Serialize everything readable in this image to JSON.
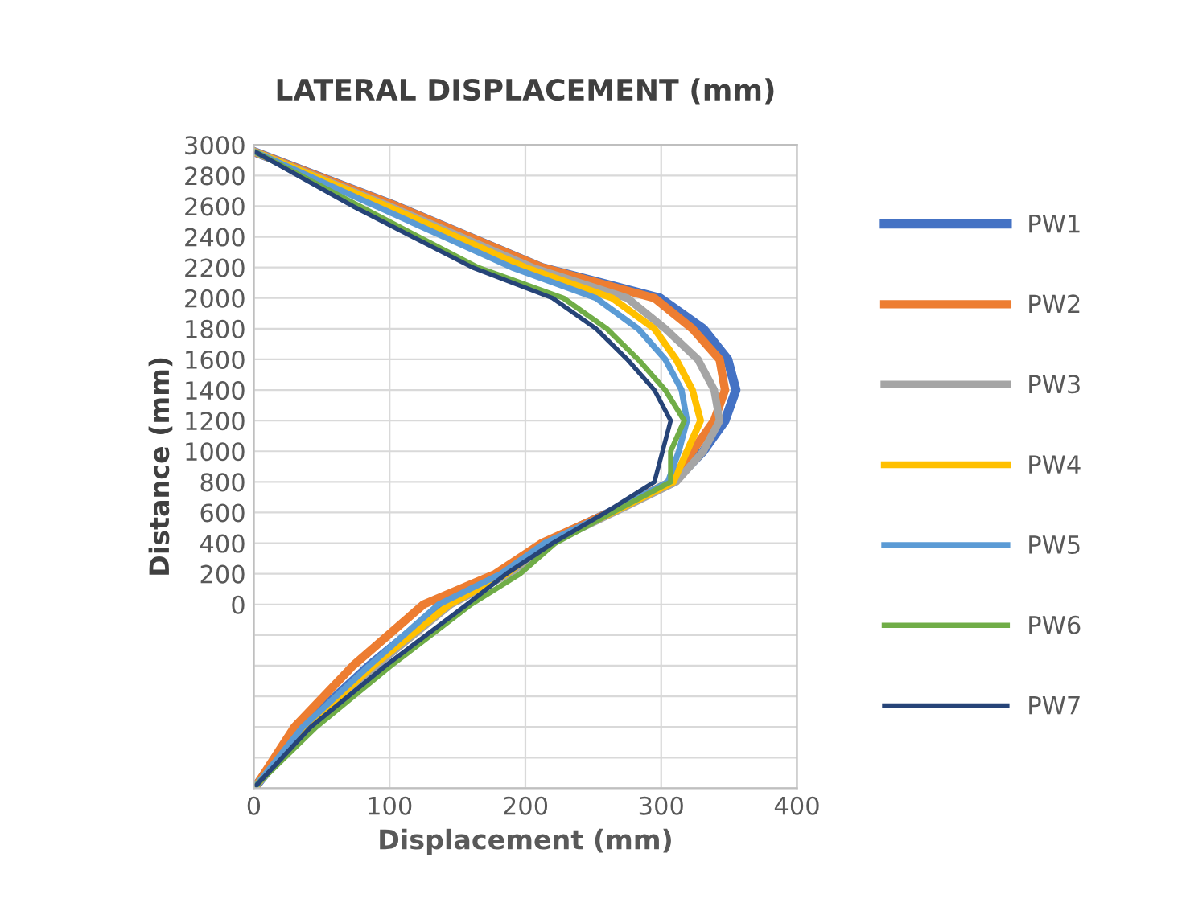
{
  "chart_data": {
    "type": "line",
    "title": "LATERAL DISPLACEMENT (mm)",
    "xlabel": "Displacement (mm)",
    "ylabel": "Distance (mm)",
    "xlim": [
      0,
      400
    ],
    "xticks": [
      0,
      100,
      200,
      300,
      400
    ],
    "ylim": [
      -1200,
      3000
    ],
    "yticks": [
      {
        "value": -1200,
        "label": null
      },
      {
        "value": -1000,
        "label": null
      },
      {
        "value": -800,
        "label": null
      },
      {
        "value": -600,
        "label": null
      },
      {
        "value": -400,
        "label": null
      },
      {
        "value": -200,
        "label": null
      },
      0,
      200,
      400,
      600,
      800,
      1000,
      1200,
      1400,
      1600,
      1800,
      2000,
      2200,
      2400,
      2600,
      2800,
      3000
    ],
    "grid": true,
    "legend": "right",
    "marker": "none",
    "line_style": "solid",
    "series": [
      {
        "name": "PW1",
        "color": "#4472c4",
        "x": [
          2,
          105,
          212,
          299,
          331,
          349,
          355,
          347,
          331,
          309,
          262,
          214,
          185,
          140,
          85,
          36,
          2
        ],
        "values": [
          2950,
          2600,
          2200,
          2000,
          1800,
          1600,
          1400,
          1200,
          1000,
          800,
          600,
          400,
          200,
          0,
          -400,
          -800,
          -1180
        ]
      },
      {
        "name": "PW2",
        "color": "#ed7d31",
        "x": [
          2,
          105,
          212,
          295,
          323,
          343,
          347,
          339,
          323,
          307,
          262,
          212,
          178,
          125,
          73,
          30,
          2
        ],
        "values": [
          2950,
          2600,
          2200,
          2000,
          1800,
          1600,
          1400,
          1200,
          1000,
          800,
          600,
          400,
          200,
          0,
          -400,
          -800,
          -1180
        ]
      },
      {
        "name": "PW3",
        "color": "#a5a5a5",
        "x": [
          2,
          100,
          205,
          275,
          303,
          327,
          339,
          343,
          331,
          311,
          265,
          218,
          188,
          145,
          90,
          40,
          2
        ],
        "values": [
          2950,
          2600,
          2200,
          2000,
          1800,
          1600,
          1400,
          1200,
          1000,
          800,
          600,
          400,
          200,
          0,
          -400,
          -800,
          -1180
        ]
      },
      {
        "name": "PW4",
        "color": "#ffc000",
        "x": [
          2,
          98,
          200,
          264,
          295,
          311,
          323,
          329,
          319,
          309,
          264,
          216,
          186,
          144,
          88,
          38,
          2
        ],
        "values": [
          2950,
          2600,
          2200,
          2000,
          1800,
          1600,
          1400,
          1200,
          1000,
          800,
          600,
          400,
          200,
          0,
          -400,
          -800,
          -1180
        ]
      },
      {
        "name": "PW5",
        "color": "#5b9bd5",
        "x": [
          2,
          90,
          190,
          252,
          283,
          303,
          315,
          319,
          313,
          305,
          262,
          214,
          182,
          136,
          85,
          36,
          2
        ],
        "values": [
          2950,
          2600,
          2200,
          2000,
          1800,
          1600,
          1400,
          1200,
          1000,
          800,
          600,
          400,
          200,
          0,
          -400,
          -800,
          -1180
        ]
      },
      {
        "name": "PW6",
        "color": "#70ad47",
        "x": [
          2,
          78,
          165,
          228,
          260,
          283,
          303,
          317,
          307,
          307,
          264,
          222,
          196,
          160,
          101,
          46,
          2
        ],
        "values": [
          2950,
          2600,
          2200,
          2000,
          1800,
          1600,
          1400,
          1200,
          1000,
          800,
          600,
          400,
          200,
          0,
          -400,
          -800,
          -1180
        ]
      },
      {
        "name": "PW7",
        "color": "#264478",
        "x": [
          2,
          73,
          161,
          220,
          252,
          275,
          295,
          307,
          301,
          295,
          259,
          220,
          186,
          157,
          97,
          42,
          2
        ],
        "values": [
          2950,
          2600,
          2200,
          2000,
          1800,
          1600,
          1400,
          1200,
          1000,
          800,
          600,
          400,
          200,
          0,
          -400,
          -800,
          -1180
        ]
      }
    ]
  }
}
